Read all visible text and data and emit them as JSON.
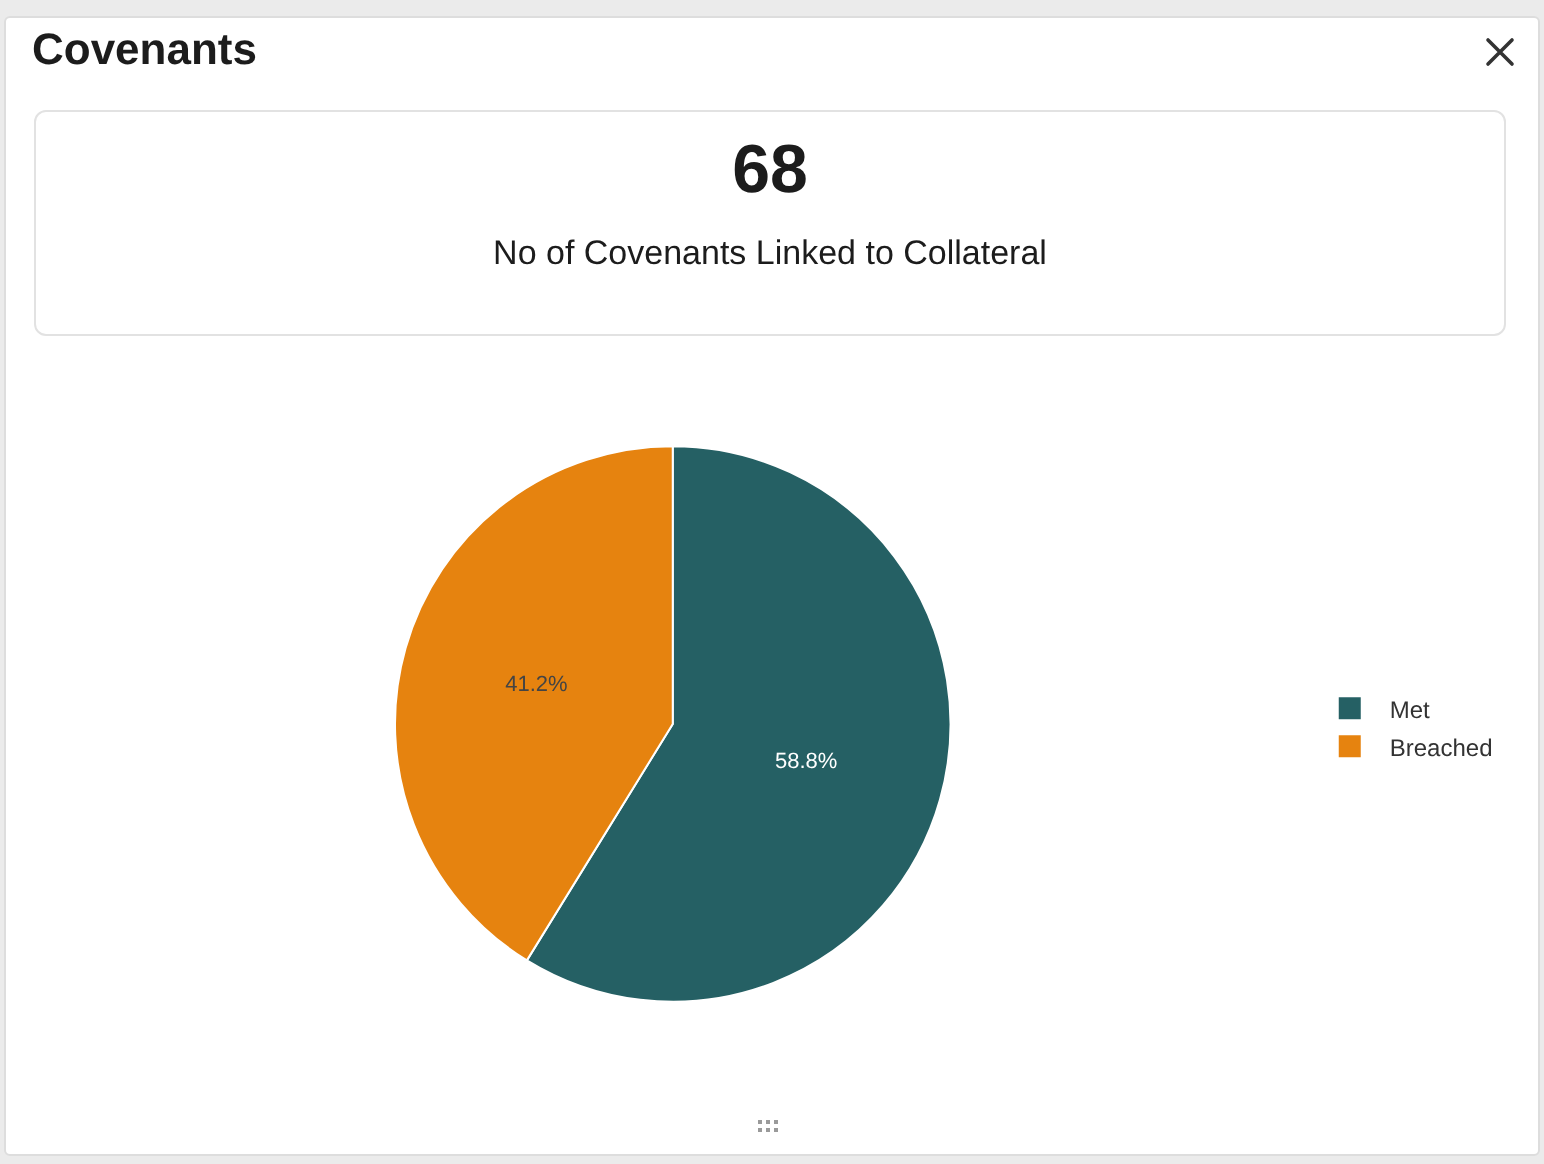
{
  "chart_data": [
    {
      "type": "other",
      "title": "Covenants",
      "annotations": [
        "68",
        "No of Covenants Linked to Collateral"
      ]
    },
    {
      "type": "pie",
      "categories": [
        "Met",
        "Breached"
      ],
      "values": [
        58.8,
        41.2
      ],
      "colors": [
        "#256064",
        "#e6830f"
      ],
      "value_labels": [
        "58.8%",
        "41.2%"
      ],
      "legend": "right"
    }
  ]
}
